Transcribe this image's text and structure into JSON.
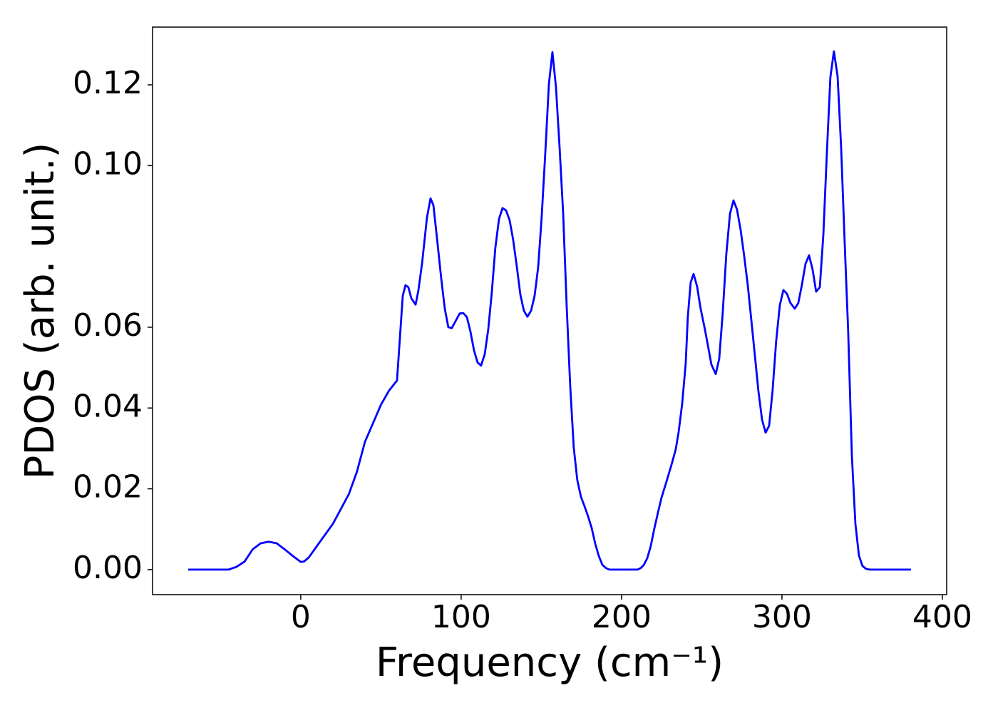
{
  "chart_data": {
    "type": "line",
    "xlabel": "Frequency (cm⁻¹)",
    "ylabel": "PDOS (arb. unit.)",
    "xlim": [
      -92.4,
      402.7
    ],
    "ylim": [
      -0.0062,
      0.1343
    ],
    "xticks": [
      0,
      100,
      200,
      300,
      400
    ],
    "yticks": [
      {
        "value": 0,
        "label": "0.00"
      },
      0.02,
      0.04,
      0.06,
      {
        "value": 0.1,
        "label": "0.10"
      },
      0.12
    ],
    "grid": false,
    "x": [
      -70.2,
      -45,
      -40,
      -35,
      -30,
      -25,
      -20,
      -15,
      -10,
      -5,
      0,
      2,
      5,
      10,
      20,
      30,
      35,
      40,
      45,
      50,
      55,
      60,
      63.6,
      65.3,
      67.1,
      68.9,
      71.6,
      73.3,
      75.6,
      78.7,
      80.9,
      82.7,
      84.9,
      87.6,
      89.8,
      92,
      94.2,
      96.9,
      99.1,
      101.3,
      103.6,
      105.8,
      108,
      110.2,
      112.4,
      114.7,
      116.9,
      119.1,
      121.3,
      123.6,
      125.8,
      128,
      130.2,
      132.4,
      134.7,
      136.9,
      139.1,
      141.3,
      143.6,
      145.8,
      148,
      150.2,
      152.4,
      154.7,
      156.9,
      159.1,
      161.3,
      163.6,
      165.8,
      168,
      170.2,
      172.4,
      174.7,
      176.9,
      179.1,
      181.3,
      183.6,
      185.8,
      188,
      190.2,
      192.4,
      210,
      212,
      213.8,
      216,
      218.2,
      220.4,
      222.7,
      224.9,
      227.1,
      229.3,
      231.6,
      233.8,
      235.6,
      237.8,
      240,
      241.3,
      243.1,
      244.9,
      247.1,
      249.3,
      251.6,
      253.8,
      256,
      258.7,
      260.9,
      263.1,
      265.3,
      267.6,
      269.8,
      272,
      274.2,
      276.4,
      278.7,
      280.9,
      283.1,
      285.3,
      287.6,
      289.8,
      292,
      294.2,
      296.4,
      298.7,
      300.9,
      303.1,
      305.3,
      308,
      310.2,
      312.4,
      314.7,
      316.9,
      319.1,
      321.3,
      323.6,
      325.8,
      328,
      330.2,
      332.4,
      334.7,
      336.9,
      339.1,
      341.3,
      343.6,
      345.8,
      348,
      350.2,
      352.4,
      354.7,
      380.4
    ],
    "series": [
      {
        "name": "PDOS",
        "color": "#0000ff",
        "values": [
          0,
          0,
          0.0007,
          0.002,
          0.005,
          0.0065,
          0.0069,
          0.0065,
          0.005,
          0.0034,
          0.0019,
          0.002,
          0.003,
          0.0058,
          0.0113,
          0.0187,
          0.0242,
          0.0316,
          0.0362,
          0.0408,
          0.0443,
          0.0468,
          0.0678,
          0.0704,
          0.0699,
          0.0672,
          0.0656,
          0.069,
          0.0757,
          0.0872,
          0.0919,
          0.0902,
          0.0822,
          0.072,
          0.0646,
          0.06,
          0.0598,
          0.0618,
          0.0634,
          0.0635,
          0.0625,
          0.0589,
          0.0543,
          0.0513,
          0.0505,
          0.0533,
          0.0595,
          0.0686,
          0.0796,
          0.0868,
          0.0895,
          0.0889,
          0.0865,
          0.0817,
          0.075,
          0.0681,
          0.0641,
          0.0626,
          0.0641,
          0.0678,
          0.0748,
          0.0873,
          0.1027,
          0.1202,
          0.1281,
          0.1195,
          0.105,
          0.0881,
          0.0651,
          0.0454,
          0.0302,
          0.0222,
          0.018,
          0.0157,
          0.0132,
          0.0104,
          0.0064,
          0.0034,
          0.0012,
          0.0004,
          0,
          0,
          0.0004,
          0.0011,
          0.0028,
          0.0058,
          0.0101,
          0.0141,
          0.0178,
          0.0206,
          0.0235,
          0.0266,
          0.0298,
          0.0341,
          0.0411,
          0.051,
          0.0625,
          0.0711,
          0.0732,
          0.0701,
          0.0646,
          0.0602,
          0.0556,
          0.0508,
          0.0484,
          0.0522,
          0.0637,
          0.078,
          0.0881,
          0.0914,
          0.0891,
          0.0842,
          0.0778,
          0.0704,
          0.0618,
          0.0531,
          0.0443,
          0.0371,
          0.0339,
          0.0356,
          0.0445,
          0.0566,
          0.0655,
          0.0692,
          0.0683,
          0.066,
          0.0646,
          0.066,
          0.0704,
          0.0757,
          0.0778,
          0.0743,
          0.0688,
          0.0699,
          0.0828,
          0.1031,
          0.1219,
          0.1283,
          0.1221,
          0.1045,
          0.081,
          0.0589,
          0.0281,
          0.0113,
          0.0035,
          0.0009,
          0.0002,
          0,
          0
        ]
      }
    ]
  }
}
